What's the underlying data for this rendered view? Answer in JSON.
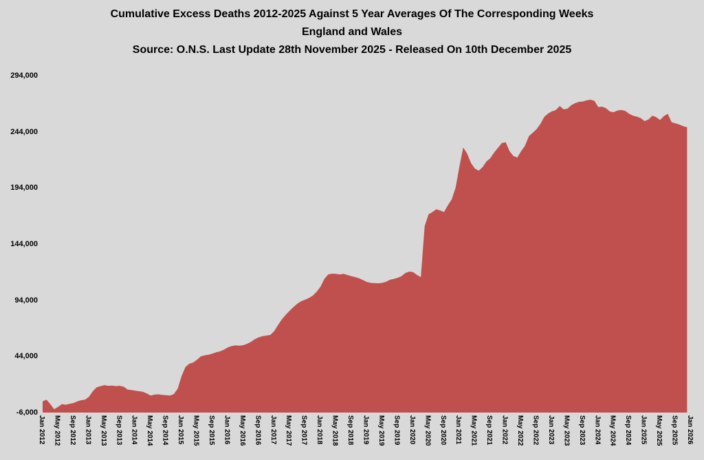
{
  "chart_data": {
    "type": "area",
    "title": "Cumulative Excess Deaths 2012-2025 Against 5 Year Averages Of The Corresponding Weeks",
    "subtitle": "England and Wales",
    "source": "Source: O.N.S. Last Update 28th November 2025 - Released On 10th December 2025",
    "ylim": [
      -6000,
      294000
    ],
    "grid": false,
    "legend": false,
    "colors": {
      "area": "#c0504d",
      "background": "#d9d9d9",
      "text": "#000000"
    },
    "y_ticks": [
      {
        "label": "294,000",
        "value": 294000
      },
      {
        "label": "244,000",
        "value": 244000
      },
      {
        "label": "194,000",
        "value": 194000
      },
      {
        "label": "144,000",
        "value": 144000
      },
      {
        "label": "94,000",
        "value": 94000
      },
      {
        "label": "44,000",
        "value": 44000
      },
      {
        "label": "-6,000",
        "value": -6000
      }
    ],
    "x_tick_labels": [
      "Jan 2012",
      "May 2012",
      "Sep 2012",
      "Jan 2013",
      "May 2013",
      "Sep 2013",
      "Jan 2014",
      "May 2014",
      "Sep 2014",
      "Jan 2015",
      "May 2015",
      "Sep 2015",
      "Jan 2016",
      "May 2016",
      "Sep 2016",
      "Jan 2017",
      "May 2017",
      "Sep 2017",
      "Jan 2018",
      "May 2018",
      "Sep 2018",
      "Jan 2019",
      "May 2019",
      "Sep 2019",
      "Jan 2020",
      "May 2020",
      "Sep 2020",
      "Jan 2021",
      "May 2021",
      "Sep 2021",
      "Jan 2022",
      "May 2022",
      "Sep 2022",
      "Jan 2023",
      "May 2023",
      "Sep 2023",
      "Jan 2024",
      "May 2024",
      "Sep 2024",
      "Jan 2025",
      "May 2025",
      "Sep 2025",
      "Jan 2026"
    ],
    "series_interval": "monthly",
    "series_start": "Jan 2012",
    "series_end": "Dec 2025",
    "values": [
      4000,
      5500,
      1500,
      -3000,
      -1000,
      1500,
      1000,
      1800,
      2500,
      4000,
      5000,
      5500,
      8000,
      13000,
      16500,
      17500,
      18400,
      17800,
      18000,
      17600,
      17800,
      17000,
      14500,
      14000,
      13500,
      13000,
      12500,
      11000,
      9200,
      10000,
      10200,
      9800,
      9500,
      9200,
      10400,
      15300,
      26500,
      34500,
      37500,
      38600,
      41000,
      44100,
      45000,
      45500,
      46500,
      47700,
      48500,
      50000,
      52000,
      53200,
      53900,
      53600,
      54000,
      55200,
      57000,
      59400,
      61000,
      62000,
      62600,
      63100,
      66500,
      72000,
      77000,
      81000,
      84600,
      88000,
      91000,
      93100,
      94500,
      96000,
      98100,
      101500,
      106000,
      113000,
      117000,
      117700,
      117500,
      117000,
      117500,
      116500,
      115500,
      114600,
      113500,
      112000,
      110300,
      109500,
      109200,
      109100,
      109500,
      110500,
      112200,
      113000,
      114000,
      115500,
      118300,
      119500,
      119000,
      116500,
      114600,
      160000,
      170500,
      172500,
      175000,
      174000,
      172500,
      178500,
      183800,
      194000,
      213000,
      230000,
      224700,
      216200,
      211300,
      209400,
      212500,
      217500,
      220500,
      225500,
      229700,
      234000,
      234700,
      226700,
      222400,
      221100,
      226700,
      231600,
      240100,
      243200,
      246300,
      251100,
      257300,
      260300,
      262200,
      263400,
      267000,
      264000,
      264600,
      267700,
      269500,
      270700,
      271000,
      272000,
      272600,
      271500,
      266000,
      266400,
      265000,
      262000,
      261500,
      263000,
      263400,
      262500,
      260000,
      258300,
      257500,
      256200,
      253500,
      255000,
      258300,
      257000,
      254500,
      258000,
      260000,
      252500,
      251500,
      250500,
      249000,
      248000
    ]
  }
}
